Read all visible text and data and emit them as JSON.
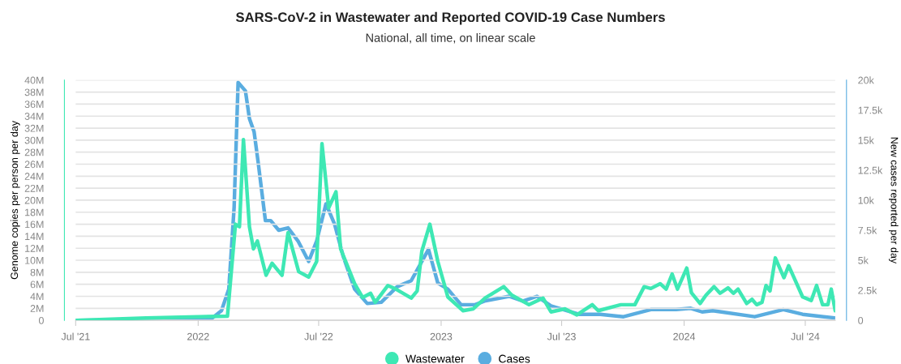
{
  "chart_data": {
    "type": "line",
    "title": "SARS-CoV-2 in Wastewater and Reported COVID-19 Case Numbers",
    "subtitle": "National, all time, on linear scale",
    "ylabel": "Genome copies per person per day",
    "y2label": "New cases reported per day",
    "xlim": [
      "2021-07-01",
      "2024-08-15"
    ],
    "xticks": [
      {
        "value": "2021-07-01",
        "label": "Jul '21"
      },
      {
        "value": "2022-01-01",
        "label": "2022"
      },
      {
        "value": "2022-07-01",
        "label": "Jul '22"
      },
      {
        "value": "2023-01-01",
        "label": "2023"
      },
      {
        "value": "2023-07-01",
        "label": "Jul '23"
      },
      {
        "value": "2024-01-01",
        "label": "2024"
      },
      {
        "value": "2024-07-01",
        "label": "Jul '24"
      }
    ],
    "ylim": [
      0,
      40000000
    ],
    "yticks": [
      0,
      {
        "value": 2000000,
        "label": "2M"
      },
      {
        "value": 4000000,
        "label": "4M"
      },
      {
        "value": 6000000,
        "label": "6M"
      },
      {
        "value": 8000000,
        "label": "8M"
      },
      {
        "value": 10000000,
        "label": "10M"
      },
      {
        "value": 12000000,
        "label": "12M"
      },
      {
        "value": 14000000,
        "label": "14M"
      },
      {
        "value": 16000000,
        "label": "16M"
      },
      {
        "value": 18000000,
        "label": "18M"
      },
      {
        "value": 20000000,
        "label": "20M"
      },
      {
        "value": 22000000,
        "label": "22M"
      },
      {
        "value": 24000000,
        "label": "24M"
      },
      {
        "value": 26000000,
        "label": "26M"
      },
      {
        "value": 28000000,
        "label": "28M"
      },
      {
        "value": 30000000,
        "label": "30M"
      },
      {
        "value": 32000000,
        "label": "32M"
      },
      {
        "value": 34000000,
        "label": "34M"
      },
      {
        "value": 36000000,
        "label": "36M"
      },
      {
        "value": 38000000,
        "label": "38M"
      },
      {
        "value": 40000000,
        "label": "40M"
      }
    ],
    "y2lim": [
      0,
      20000
    ],
    "y2ticks": [
      0,
      {
        "value": 2500,
        "label": "2.5k"
      },
      {
        "value": 5000,
        "label": "5k"
      },
      {
        "value": 7500,
        "label": "7.5k"
      },
      {
        "value": 10000,
        "label": "10k"
      },
      {
        "value": 12500,
        "label": "12.5k"
      },
      {
        "value": 15000,
        "label": "15k"
      },
      {
        "value": 17500,
        "label": "17.5k"
      },
      {
        "value": 20000,
        "label": "20k"
      }
    ],
    "grid": "y",
    "legend": "bottom",
    "marker": "none",
    "line_style": "solid",
    "series": [
      {
        "name": "Wastewater",
        "color": "#3ee8b4",
        "x": [
          "2021-07-01",
          "2021-10-15",
          "2022-02-14",
          "2022-02-26",
          "2022-03-04",
          "2022-03-10",
          "2022-03-19",
          "2022-03-25",
          "2022-03-31",
          "2022-04-13",
          "2022-04-22",
          "2022-05-07",
          "2022-05-16",
          "2022-06-01",
          "2022-06-16",
          "2022-06-28",
          "2022-07-06",
          "2022-07-16",
          "2022-07-27",
          "2022-08-03",
          "2022-08-24",
          "2022-09-05",
          "2022-09-17",
          "2022-09-24",
          "2022-10-13",
          "2022-10-25",
          "2022-11-17",
          "2022-11-26",
          "2022-12-03",
          "2022-12-15",
          "2022-12-27",
          "2023-01-11",
          "2023-02-03",
          "2023-02-18",
          "2023-03-08",
          "2023-04-05",
          "2023-04-17",
          "2023-05-13",
          "2023-06-03",
          "2023-06-15",
          "2023-07-06",
          "2023-07-24",
          "2023-08-16",
          "2023-08-25",
          "2023-09-28",
          "2023-10-19",
          "2023-11-02",
          "2023-11-12",
          "2023-11-26",
          "2023-12-05",
          "2023-12-14",
          "2023-12-22",
          "2024-01-05",
          "2024-01-12",
          "2024-01-25",
          "2024-02-03",
          "2024-02-15",
          "2024-02-24",
          "2024-03-07",
          "2024-03-15",
          "2024-03-22",
          "2024-04-04",
          "2024-04-12",
          "2024-04-19",
          "2024-04-27",
          "2024-05-03",
          "2024-05-09",
          "2024-05-17",
          "2024-05-30",
          "2024-06-06",
          "2024-06-27",
          "2024-07-10",
          "2024-07-18",
          "2024-07-27",
          "2024-08-04",
          "2024-08-09",
          "2024-08-15"
        ],
        "values": [
          0,
          400000,
          700000,
          16000000,
          15600000,
          30100000,
          15600000,
          11900000,
          13200000,
          7500000,
          9500000,
          7500000,
          14600000,
          8100000,
          7200000,
          9800000,
          29400000,
          18700000,
          21400000,
          11900000,
          6100000,
          3800000,
          4500000,
          3000000,
          5800000,
          5200000,
          3700000,
          4900000,
          11500000,
          16000000,
          9800000,
          3900000,
          1600000,
          1900000,
          3700000,
          5600000,
          4200000,
          2600000,
          3700000,
          1400000,
          1900000,
          900000,
          2600000,
          1600000,
          2600000,
          2600000,
          5600000,
          5300000,
          6100000,
          5200000,
          7700000,
          5200000,
          8700000,
          4600000,
          2800000,
          4200000,
          5600000,
          4500000,
          5400000,
          4500000,
          5200000,
          2800000,
          3500000,
          2600000,
          3000000,
          5800000,
          4900000,
          10400000,
          7100000,
          9100000,
          3900000,
          3300000,
          5800000,
          2600000,
          2600000,
          5200000,
          1600000
        ]
      },
      {
        "name": "Cases",
        "color": "#5aade0",
        "axis": "y2",
        "x": [
          "2021-07-01",
          "2022-01-20",
          "2022-02-05",
          "2022-02-16",
          "2022-02-24",
          "2022-03-02",
          "2022-03-13",
          "2022-03-19",
          "2022-03-26",
          "2022-04-01",
          "2022-04-12",
          "2022-04-20",
          "2022-05-02",
          "2022-05-16",
          "2022-05-31",
          "2022-06-16",
          "2022-06-28",
          "2022-07-12",
          "2022-07-25",
          "2022-08-07",
          "2022-08-24",
          "2022-09-12",
          "2022-10-03",
          "2022-10-27",
          "2022-11-17",
          "2022-12-13",
          "2022-12-27",
          "2023-01-11",
          "2023-01-31",
          "2023-02-21",
          "2023-03-07",
          "2023-04-13",
          "2023-05-04",
          "2023-05-25",
          "2023-06-15",
          "2023-07-27",
          "2023-08-28",
          "2023-10-02",
          "2023-11-12",
          "2023-12-20",
          "2024-01-11",
          "2024-01-28",
          "2024-02-13",
          "2024-04-16",
          "2024-05-29",
          "2024-06-27",
          "2024-08-14"
        ],
        "values": [
          0,
          100,
          800,
          2600,
          9400,
          19800,
          19100,
          16800,
          15700,
          13200,
          8300,
          8300,
          7500,
          7700,
          6600,
          4900,
          6600,
          9700,
          8000,
          5300,
          2600,
          1400,
          1500,
          2800,
          3300,
          5900,
          3100,
          2600,
          1300,
          1300,
          1600,
          2000,
          1600,
          2000,
          1200,
          500,
          500,
          300,
          900,
          900,
          1000,
          700,
          800,
          300,
          900,
          500,
          200
        ]
      }
    ]
  }
}
